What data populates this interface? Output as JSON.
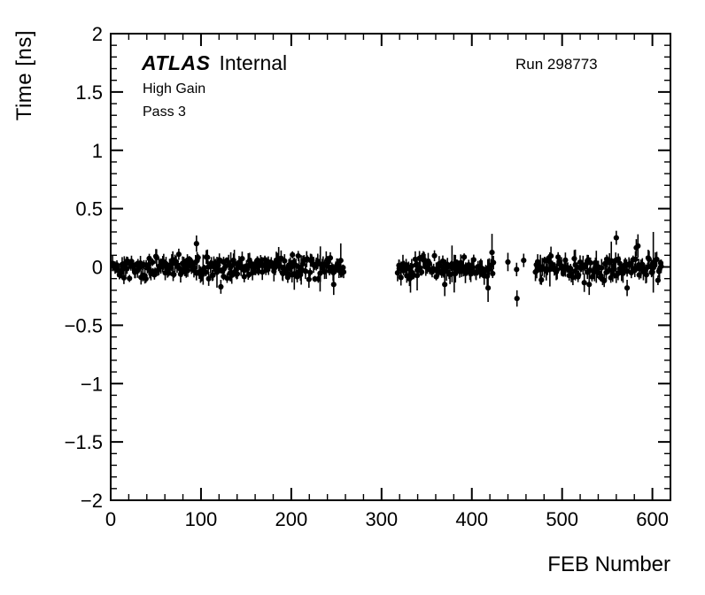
{
  "page": {
    "background": "#ffffff"
  },
  "chart_data": {
    "type": "scatter",
    "title": "",
    "xlabel": "FEB Number",
    "ylabel": "Time [ns]",
    "xlim": [
      0,
      620
    ],
    "ylim": [
      -2,
      2
    ],
    "x_ticks": [
      0,
      100,
      200,
      300,
      400,
      500,
      600
    ],
    "y_ticks": [
      -2,
      -1.5,
      -1,
      -0.5,
      0,
      0.5,
      1,
      1.5,
      2
    ],
    "x_minor_step": 20,
    "y_minor_step": 0.1,
    "grid": false,
    "legend": null,
    "marker_color": "#000000",
    "marker_radius": 3.1,
    "error_bars": true,
    "annotations": {
      "atlas_brand": "ATLAS",
      "atlas_text": "Internal",
      "line1": "High Gain",
      "line2": "Pass 3",
      "run": "Run 298773"
    },
    "series_description": "Per-FEB mean time offset near 0 ns, dense bands with gaps between FEB ranges",
    "clusters": [
      {
        "x_start": 2,
        "x_end": 258,
        "n": 252,
        "y_mean": 0.0,
        "y_spread": 0.045,
        "err_mean": 0.05
      },
      {
        "x_start": 318,
        "x_end": 424,
        "n": 102,
        "y_mean": -0.005,
        "y_spread": 0.05,
        "err_mean": 0.055
      },
      {
        "x_start": 440,
        "x_end": 458,
        "n": 3,
        "y_mean": 0.02,
        "y_spread": 0.04,
        "err_mean": 0.06
      },
      {
        "x_start": 470,
        "x_end": 610,
        "n": 128,
        "y_mean": 0.0,
        "y_spread": 0.055,
        "err_mean": 0.055
      }
    ],
    "outliers": [
      {
        "x": 95,
        "y": 0.2,
        "err": 0.07
      },
      {
        "x": 122,
        "y": -0.17,
        "err": 0.06
      },
      {
        "x": 247,
        "y": -0.15,
        "err": 0.09
      },
      {
        "x": 370,
        "y": -0.15,
        "err": 0.1
      },
      {
        "x": 418,
        "y": -0.18,
        "err": 0.12
      },
      {
        "x": 450,
        "y": -0.27,
        "err": 0.07
      },
      {
        "x": 530,
        "y": -0.15,
        "err": 0.09
      },
      {
        "x": 560,
        "y": 0.25,
        "err": 0.06
      },
      {
        "x": 572,
        "y": -0.18,
        "err": 0.07
      },
      {
        "x": 584,
        "y": 0.18,
        "err": 0.1
      },
      {
        "x": 601,
        "y": 0.04,
        "err": 0.26
      }
    ],
    "seed": 20160601
  }
}
